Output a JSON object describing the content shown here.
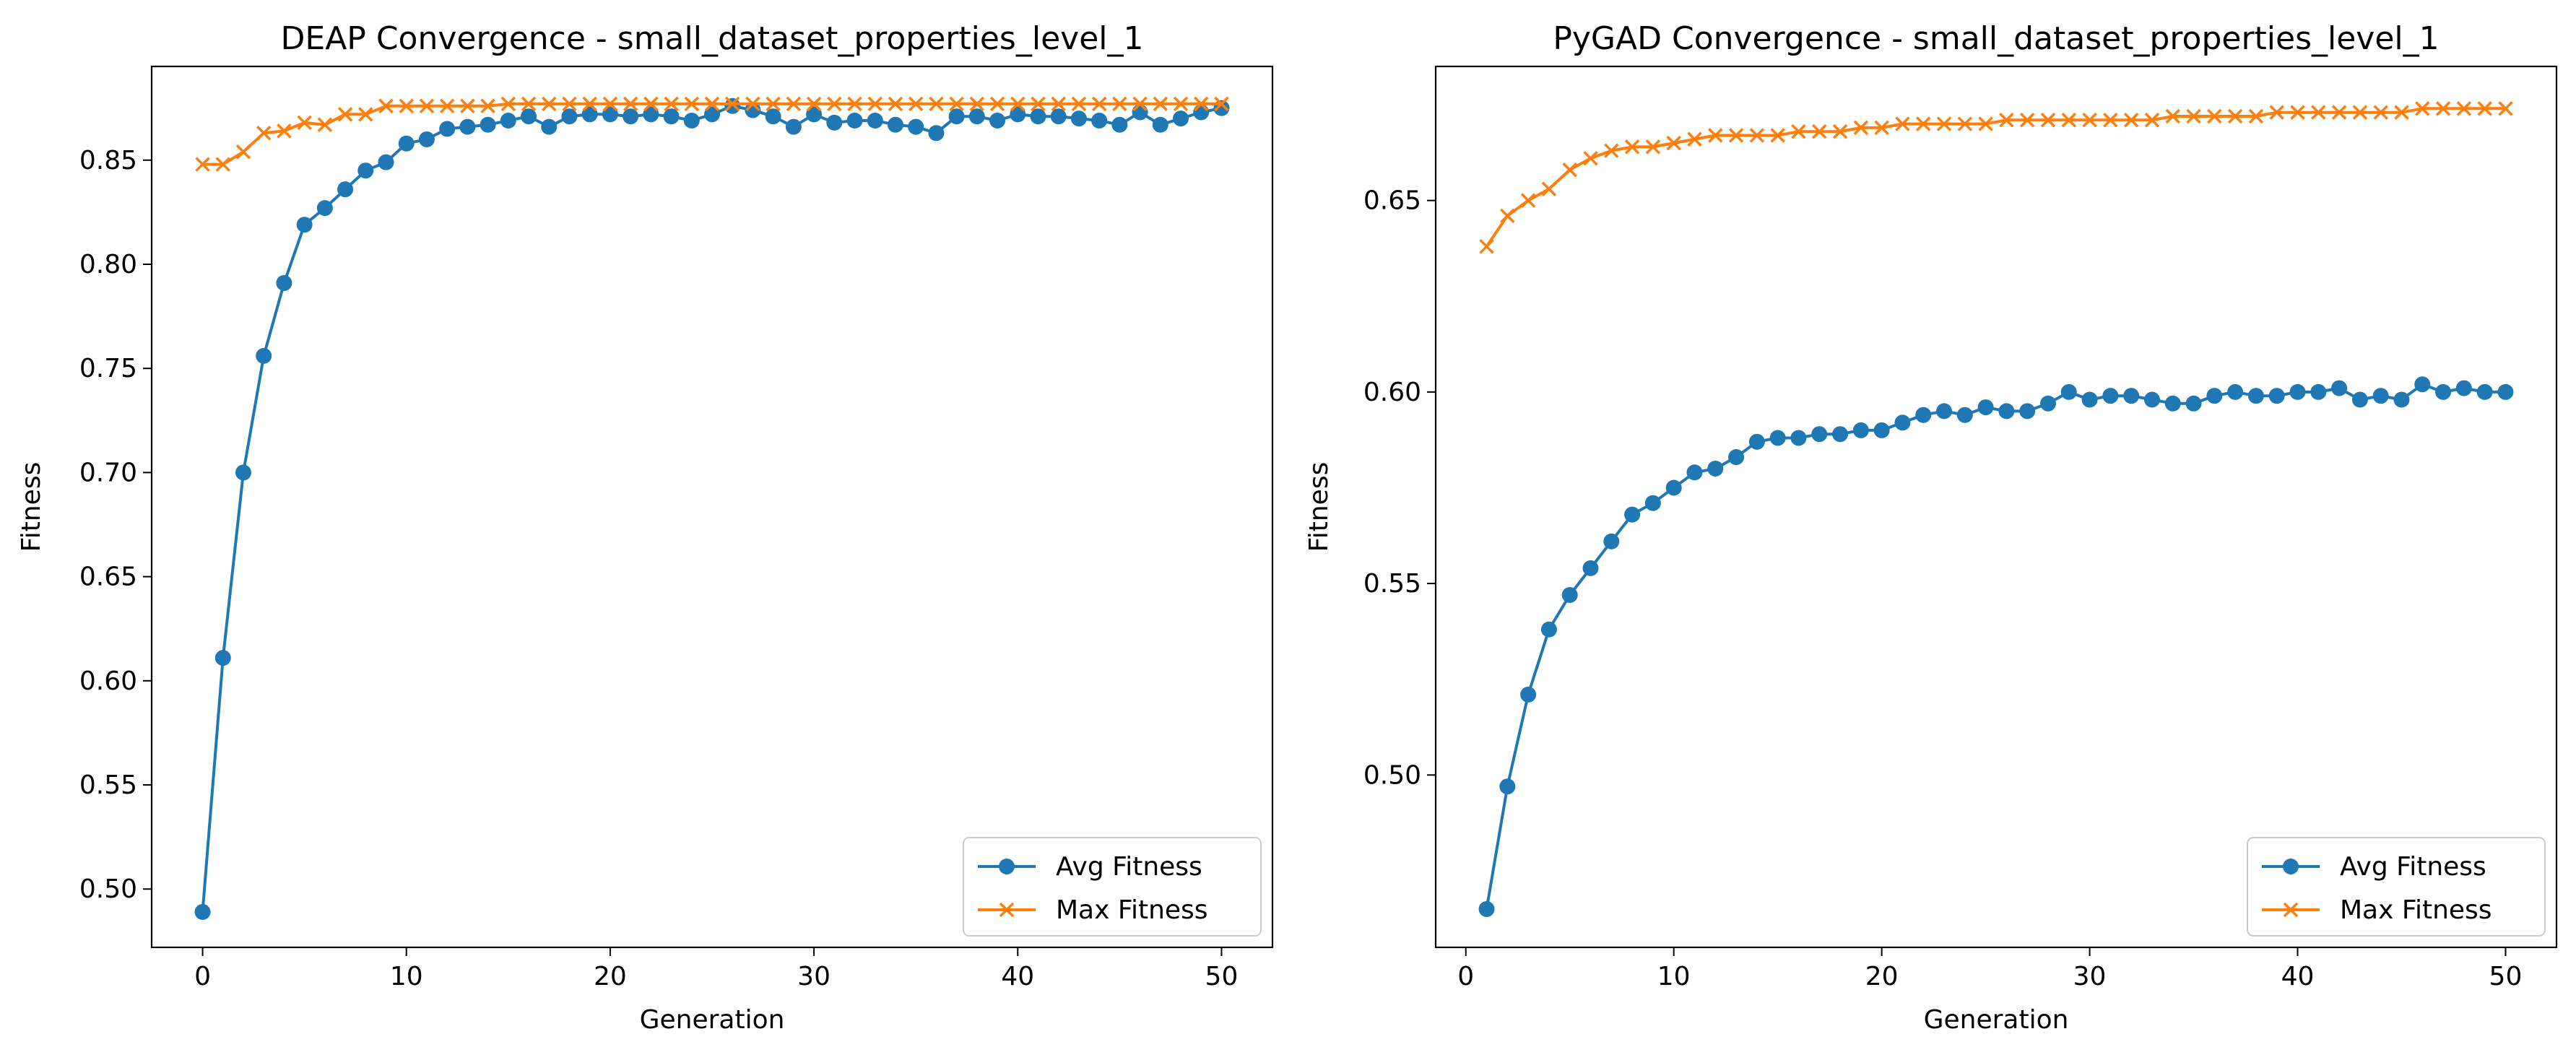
{
  "chart_data": [
    {
      "type": "line",
      "title": "DEAP Convergence - small_dataset_properties_level_1",
      "xlabel": "Generation",
      "ylabel": "Fitness",
      "xlim": [
        -2.5,
        52.5
      ],
      "ylim": [
        0.472,
        0.895
      ],
      "xticks": [
        "0",
        "10",
        "20",
        "30",
        "40",
        "50"
      ],
      "yticks": [
        "0.50",
        "0.55",
        "0.60",
        "0.65",
        "0.70",
        "0.75",
        "0.80",
        "0.85"
      ],
      "grid": false,
      "legend_position": "lower right",
      "x": [
        0,
        1,
        2,
        3,
        4,
        5,
        6,
        7,
        8,
        9,
        10,
        11,
        12,
        13,
        14,
        15,
        16,
        17,
        18,
        19,
        20,
        21,
        22,
        23,
        24,
        25,
        26,
        27,
        28,
        29,
        30,
        31,
        32,
        33,
        34,
        35,
        36,
        37,
        38,
        39,
        40,
        41,
        42,
        43,
        44,
        45,
        46,
        47,
        48,
        49,
        50
      ],
      "series": [
        {
          "name": "Avg Fitness",
          "color": "#1f77b4",
          "marker": "circle",
          "values": [
            0.489,
            0.611,
            0.7,
            0.756,
            0.791,
            0.819,
            0.827,
            0.836,
            0.845,
            0.849,
            0.858,
            0.86,
            0.865,
            0.866,
            0.867,
            0.869,
            0.871,
            0.866,
            0.871,
            0.872,
            0.872,
            0.871,
            0.872,
            0.871,
            0.869,
            0.872,
            0.876,
            0.874,
            0.871,
            0.866,
            0.872,
            0.868,
            0.869,
            0.869,
            0.867,
            0.866,
            0.863,
            0.871,
            0.871,
            0.869,
            0.872,
            0.871,
            0.871,
            0.87,
            0.869,
            0.867,
            0.873,
            0.867,
            0.87,
            0.873,
            0.875
          ]
        },
        {
          "name": "Max Fitness",
          "color": "#ff7f0e",
          "marker": "x",
          "values": [
            0.848,
            0.848,
            0.854,
            0.863,
            0.864,
            0.868,
            0.867,
            0.872,
            0.872,
            0.876,
            0.876,
            0.876,
            0.876,
            0.876,
            0.876,
            0.877,
            0.877,
            0.877,
            0.877,
            0.877,
            0.877,
            0.877,
            0.877,
            0.877,
            0.877,
            0.877,
            0.877,
            0.877,
            0.877,
            0.877,
            0.877,
            0.877,
            0.877,
            0.877,
            0.877,
            0.877,
            0.877,
            0.877,
            0.877,
            0.877,
            0.877,
            0.877,
            0.877,
            0.877,
            0.877,
            0.877,
            0.877,
            0.877,
            0.877,
            0.877,
            0.877
          ]
        }
      ]
    },
    {
      "type": "line",
      "title": "PyGAD Convergence - small_dataset_properties_level_1",
      "xlabel": "Generation",
      "ylabel": "Fitness",
      "xlim": [
        -1.45,
        52.45
      ],
      "ylim": [
        0.455,
        0.685
      ],
      "xticks": [
        "0",
        "10",
        "20",
        "30",
        "40",
        "50"
      ],
      "yticks": [
        "0.50",
        "0.55",
        "0.60",
        "0.65"
      ],
      "grid": false,
      "legend_position": "lower right",
      "x": [
        1,
        2,
        3,
        4,
        5,
        6,
        7,
        8,
        9,
        10,
        11,
        12,
        13,
        14,
        15,
        16,
        17,
        18,
        19,
        20,
        21,
        22,
        23,
        24,
        25,
        26,
        27,
        28,
        29,
        30,
        31,
        32,
        33,
        34,
        35,
        36,
        37,
        38,
        39,
        40,
        41,
        42,
        43,
        44,
        45,
        46,
        47,
        48,
        49,
        50
      ],
      "series": [
        {
          "name": "Avg Fitness",
          "color": "#1f77b4",
          "marker": "circle",
          "values": [
            0.465,
            0.497,
            0.521,
            0.538,
            0.547,
            0.554,
            0.561,
            0.568,
            0.571,
            0.575,
            0.579,
            0.58,
            0.583,
            0.587,
            0.588,
            0.588,
            0.589,
            0.589,
            0.59,
            0.59,
            0.592,
            0.594,
            0.595,
            0.594,
            0.596,
            0.595,
            0.595,
            0.597,
            0.6,
            0.598,
            0.599,
            0.599,
            0.598,
            0.597,
            0.597,
            0.599,
            0.6,
            0.599,
            0.599,
            0.6,
            0.6,
            0.601,
            0.598,
            0.599,
            0.598,
            0.602,
            0.6,
            0.601,
            0.6,
            0.6
          ]
        },
        {
          "name": "Max Fitness",
          "color": "#ff7f0e",
          "marker": "x",
          "values": [
            0.638,
            0.646,
            0.65,
            0.653,
            0.658,
            0.661,
            0.663,
            0.664,
            0.664,
            0.665,
            0.666,
            0.667,
            0.667,
            0.667,
            0.667,
            0.668,
            0.668,
            0.668,
            0.669,
            0.669,
            0.67,
            0.67,
            0.67,
            0.67,
            0.67,
            0.671,
            0.671,
            0.671,
            0.671,
            0.671,
            0.671,
            0.671,
            0.671,
            0.672,
            0.672,
            0.672,
            0.672,
            0.672,
            0.673,
            0.673,
            0.673,
            0.673,
            0.673,
            0.673,
            0.673,
            0.674,
            0.674,
            0.674,
            0.674,
            0.674
          ]
        }
      ]
    }
  ]
}
